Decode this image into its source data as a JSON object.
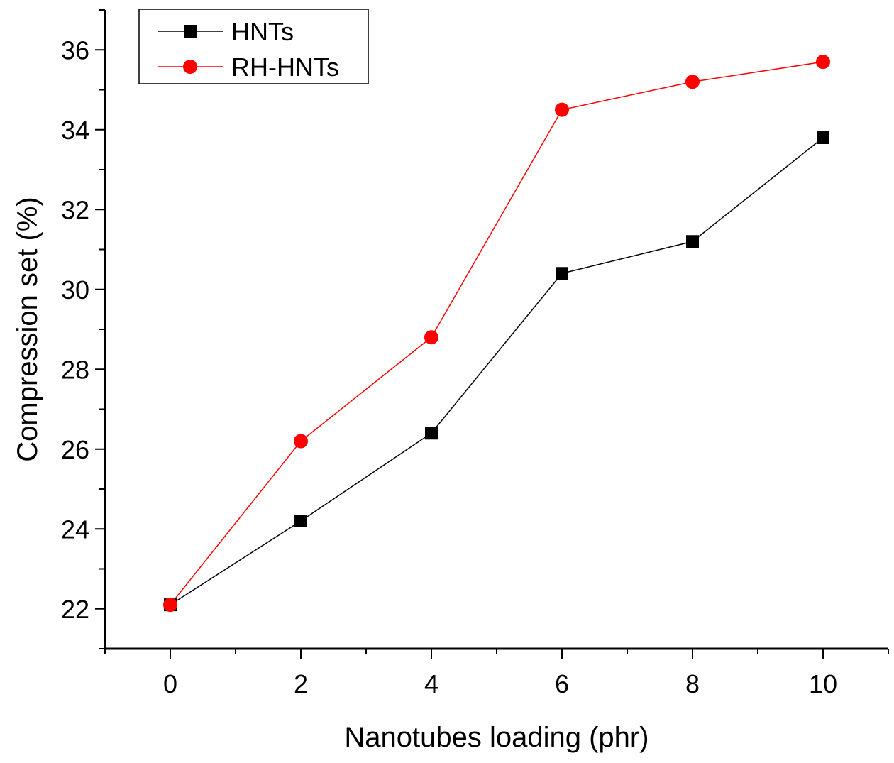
{
  "chart_data": {
    "type": "line",
    "title": "",
    "xlabel": "Nanotubes loading (phr)",
    "ylabel": "Compression set (%)",
    "x": [
      0,
      2,
      4,
      6,
      8,
      10
    ],
    "x_tick_labels": [
      "0",
      "2",
      "4",
      "6",
      "8",
      "10"
    ],
    "y_tick_labels": [
      "22",
      "24",
      "26",
      "28",
      "30",
      "32",
      "34",
      "36"
    ],
    "xlim": [
      -1,
      11
    ],
    "ylim": [
      21,
      37
    ],
    "grid": false,
    "legend_position": "top-left",
    "series": [
      {
        "name": "HNTs",
        "values": [
          22.1,
          24.2,
          26.4,
          30.4,
          31.2,
          33.8
        ],
        "color": "#000000",
        "marker": "square"
      },
      {
        "name": "RH-HNTs",
        "values": [
          22.1,
          26.2,
          28.8,
          34.5,
          35.2,
          35.7
        ],
        "color": "#ff0000",
        "marker": "circle"
      }
    ]
  }
}
